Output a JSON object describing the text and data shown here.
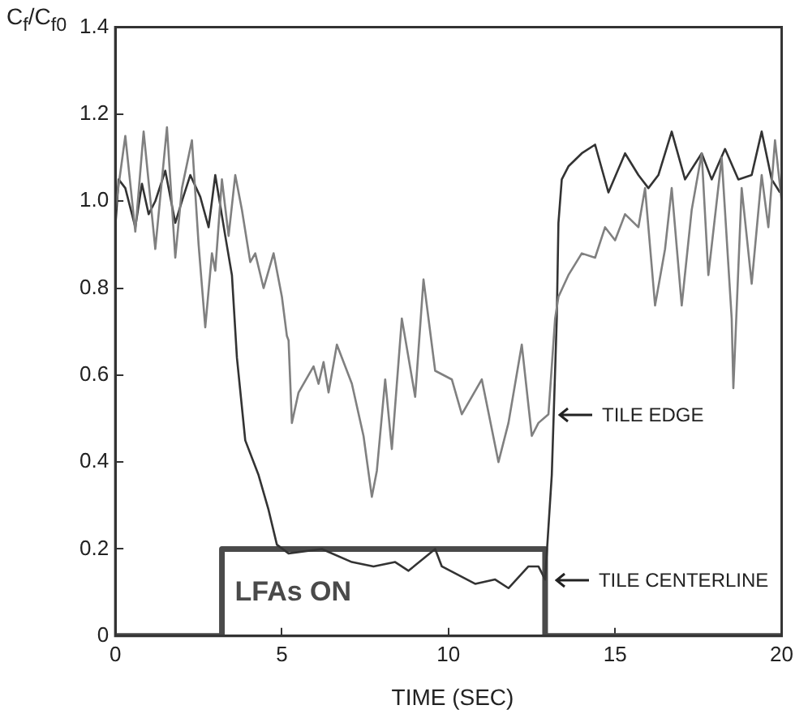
{
  "chart_data": {
    "type": "line",
    "xlabel": "TIME (SEC)",
    "ylabel": "C$_{f}$/C$_{f0}$",
    "xlim": [
      0,
      20
    ],
    "xticks": [
      0,
      5,
      10,
      15,
      20
    ],
    "ylim": [
      0,
      1.4
    ],
    "yticks": [
      0,
      0.2,
      0.4,
      0.6,
      0.8,
      {
        "value": 1,
        "label": "1.0"
      },
      1.2,
      1.4
    ],
    "grid": false,
    "legend": false,
    "marker": "none",
    "line_style": "solid",
    "annotations": [
      {
        "text": "TILE EDGE",
        "x": 13.0,
        "y": 0.51
      },
      {
        "text": "TILE CENTERLINE",
        "x": 12.9,
        "y": 0.13
      }
    ],
    "series": [
      {
        "color": "#808080",
        "x": [
          0,
          0.3,
          0.6,
          0.85,
          1.2,
          1.55,
          1.8,
          2.0,
          2.3,
          2.5,
          2.7,
          2.9,
          3.0,
          3.2,
          3.4,
          3.6,
          3.8,
          4.05,
          4.2,
          4.45,
          4.75,
          5.0,
          5.15,
          5.2,
          5.3,
          5.5,
          5.95,
          6.1,
          6.25,
          6.4,
          6.65,
          7.1,
          7.45,
          7.7,
          7.85,
          8.1,
          8.3,
          8.6,
          9.0,
          9.25,
          9.6,
          10.1,
          10.4,
          11.0,
          11.5,
          11.8,
          12.2,
          12.5,
          12.7,
          13.0,
          13.2,
          13.3,
          13.6,
          14.0,
          14.4,
          14.7,
          15.0,
          15.3,
          15.7,
          15.9,
          16.2,
          16.5,
          16.7,
          17.0,
          17.3,
          17.6,
          17.8,
          18.2,
          18.5,
          18.55,
          18.8,
          19.1,
          19.4,
          19.6,
          19.8,
          20
        ],
        "values": [
          0.98,
          1.15,
          0.93,
          1.16,
          0.89,
          1.17,
          0.87,
          1.03,
          1.14,
          0.9,
          0.71,
          0.88,
          0.84,
          1.05,
          0.92,
          1.06,
          0.98,
          0.86,
          0.88,
          0.8,
          0.88,
          0.78,
          0.69,
          0.68,
          0.49,
          0.56,
          0.62,
          0.58,
          0.63,
          0.56,
          0.67,
          0.58,
          0.46,
          0.32,
          0.38,
          0.59,
          0.43,
          0.73,
          0.55,
          0.82,
          0.61,
          0.59,
          0.51,
          0.59,
          0.4,
          0.49,
          0.67,
          0.46,
          0.49,
          0.51,
          0.73,
          0.78,
          0.83,
          0.88,
          0.87,
          0.94,
          0.91,
          0.97,
          0.94,
          1.03,
          0.76,
          0.89,
          1.03,
          0.76,
          0.98,
          1.11,
          0.83,
          1.1,
          0.73,
          0.57,
          1.03,
          0.81,
          1.06,
          0.94,
          1.14,
          1.0
        ]
      },
      {
        "color": "#333333",
        "x": [
          0,
          0.1,
          0.3,
          0.6,
          0.8,
          1.0,
          1.2,
          1.5,
          1.8,
          2.0,
          2.25,
          2.55,
          2.8,
          3.0,
          3.3,
          3.5,
          3.65,
          3.9,
          4.3,
          4.6,
          4.85,
          5.2,
          6.2,
          7.1,
          7.75,
          8.4,
          8.8,
          9.6,
          9.8,
          10.8,
          11.4,
          11.8,
          12.4,
          12.7,
          12.9,
          13.1,
          13.25,
          13.3,
          13.4,
          13.6,
          14.0,
          14.4,
          14.8,
          15.3,
          15.7,
          16.0,
          16.3,
          16.7,
          17.1,
          17.6,
          17.9,
          18.3,
          18.7,
          19.1,
          19.4,
          19.7,
          19.95
        ],
        "values": [
          0.94,
          1.05,
          1.03,
          0.94,
          1.04,
          0.97,
          1.0,
          1.07,
          0.95,
          1.0,
          1.06,
          1.01,
          0.94,
          1.06,
          0.92,
          0.83,
          0.64,
          0.45,
          0.37,
          0.29,
          0.21,
          0.19,
          0.2,
          0.17,
          0.16,
          0.17,
          0.15,
          0.2,
          0.16,
          0.12,
          0.13,
          0.11,
          0.16,
          0.16,
          0.13,
          0.37,
          0.73,
          0.95,
          1.05,
          1.08,
          1.11,
          1.13,
          1.02,
          1.11,
          1.06,
          1.03,
          1.06,
          1.16,
          1.05,
          1.11,
          1.05,
          1.12,
          1.05,
          1.06,
          1.16,
          1.05,
          1.02
        ]
      },
      {
        "type": "step",
        "name": "LFAs ON",
        "color": "#4a4a4a",
        "x": [
          0,
          3.2,
          12.9,
          20
        ],
        "values": [
          0,
          0.2,
          0,
          0
        ]
      }
    ]
  }
}
